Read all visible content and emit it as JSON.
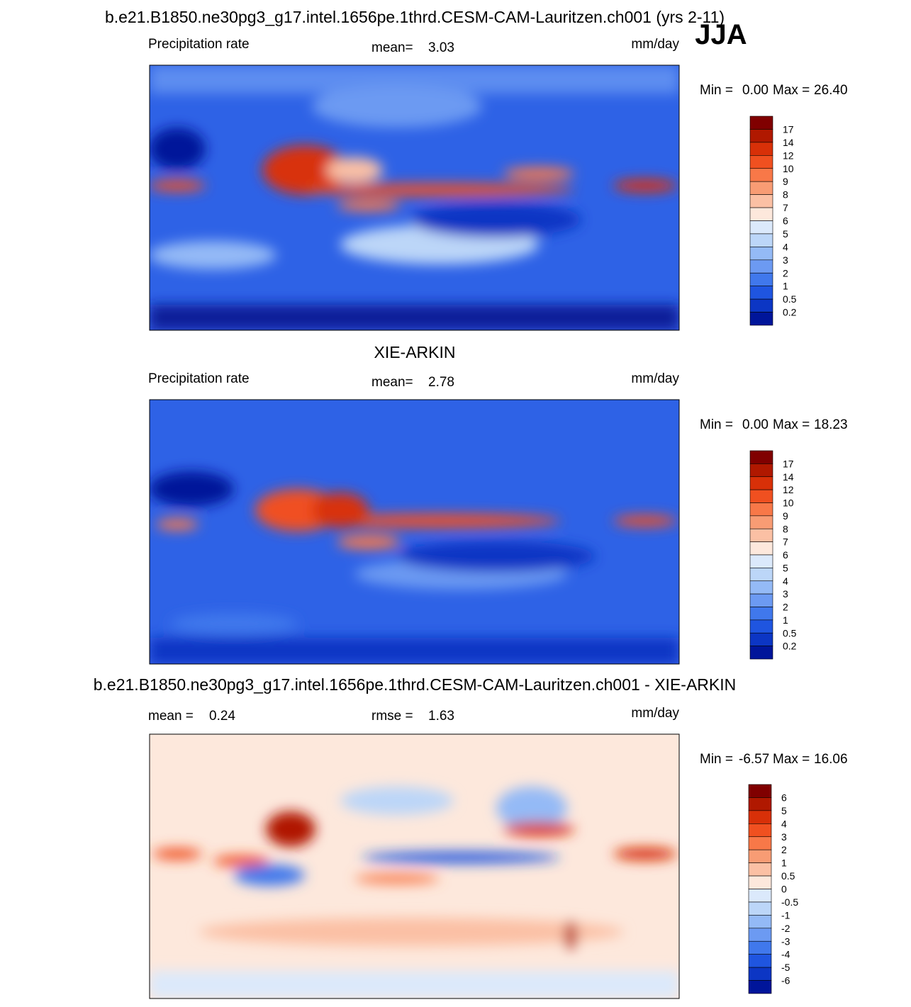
{
  "figure": {
    "title": "b.e21.B1850.ne30pg3_g17.intel.1656pe.1thrd.CESM-CAM-Lauritzen.ch001 (yrs 2-11)",
    "season": "JJA",
    "panels": [
      {
        "left_label": "Precipitation rate",
        "mean_label": "mean=",
        "mean": "3.03",
        "units": "mm/day",
        "min_label": "Min =",
        "min": "0.00",
        "max_label": "Max =",
        "max": "26.40",
        "colorbar": {
          "labels": [
            17,
            14,
            12,
            10,
            9,
            8,
            7,
            6,
            5,
            4,
            3,
            2,
            1,
            0.5,
            0.2
          ],
          "colors": [
            "#800000",
            "#b01800",
            "#d83008",
            "#f05020",
            "#f87848",
            "#f89c74",
            "#fbc0a4",
            "#fde8dc",
            "#dbe9fb",
            "#bcd6f8",
            "#94baf6",
            "#6c9af2",
            "#4078ec",
            "#1f55e0",
            "#0c36c4",
            "#00159a"
          ]
        }
      },
      {
        "title": "XIE-ARKIN",
        "left_label": "Precipitation rate",
        "mean_label": "mean=",
        "mean": "2.78",
        "units": "mm/day",
        "min_label": "Min =",
        "min": "0.00",
        "max_label": "Max =",
        "max": "18.23",
        "colorbar": {
          "labels": [
            17,
            14,
            12,
            10,
            9,
            8,
            7,
            6,
            5,
            4,
            3,
            2,
            1,
            0.5,
            0.2
          ],
          "colors": [
            "#800000",
            "#b01800",
            "#d83008",
            "#f05020",
            "#f87848",
            "#f89c74",
            "#fbc0a4",
            "#fde8dc",
            "#dbe9fb",
            "#bcd6f8",
            "#94baf6",
            "#6c9af2",
            "#4078ec",
            "#1f55e0",
            "#0c36c4",
            "#00159a"
          ]
        }
      },
      {
        "title": "b.e21.B1850.ne30pg3_g17.intel.1656pe.1thrd.CESM-CAM-Lauritzen.ch001 - XIE-ARKIN",
        "mean_label": "mean =",
        "mean": "0.24",
        "rmse_label": "rmse =",
        "rmse": "1.63",
        "units": "mm/day",
        "min_label": "Min =",
        "min": "-6.57",
        "max_label": "Max =",
        "max": "16.06",
        "colorbar": {
          "labels": [
            6,
            5,
            4,
            3,
            2,
            1,
            0.5,
            0,
            -0.5,
            -1,
            -2,
            -3,
            -4,
            -5,
            -6
          ],
          "colors": [
            "#800000",
            "#b01800",
            "#d83008",
            "#f05020",
            "#f87848",
            "#f89c74",
            "#fbc0a4",
            "#fde8dc",
            "#dbe9fb",
            "#bcd6f8",
            "#94baf6",
            "#6c9af2",
            "#4078ec",
            "#1f55e0",
            "#0c36c4",
            "#00159a"
          ]
        }
      }
    ]
  }
}
